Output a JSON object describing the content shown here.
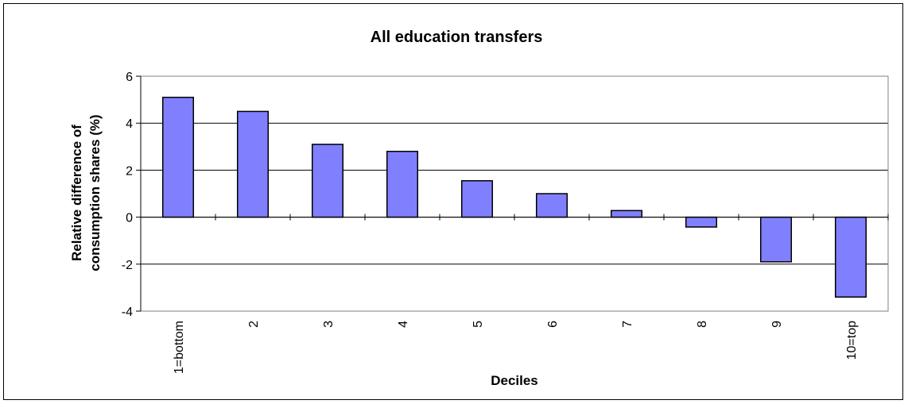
{
  "chart_data": {
    "type": "bar",
    "title": "All education transfers",
    "xlabel": "Deciles",
    "ylabel_lines": [
      "Relative difference of",
      "consumption shares (%)"
    ],
    "categories": [
      "1=bottom",
      "2",
      "3",
      "4",
      "5",
      "6",
      "7",
      "8",
      "9",
      "10=top"
    ],
    "values": [
      5.1,
      4.5,
      3.1,
      2.8,
      1.55,
      1.0,
      0.28,
      -0.42,
      -1.9,
      -3.4
    ],
    "ylim": [
      -4,
      6
    ],
    "yticks": [
      "6",
      "4",
      "2",
      "0",
      "-2",
      "-4"
    ],
    "ytick_values": [
      6,
      4,
      2,
      0,
      -2,
      -4
    ],
    "grid": true,
    "legend": "none",
    "colors": {
      "bar_fill": "#8080ff",
      "bar_stroke": "#000000",
      "plot_border": "#808080",
      "grid": "#000000"
    }
  }
}
